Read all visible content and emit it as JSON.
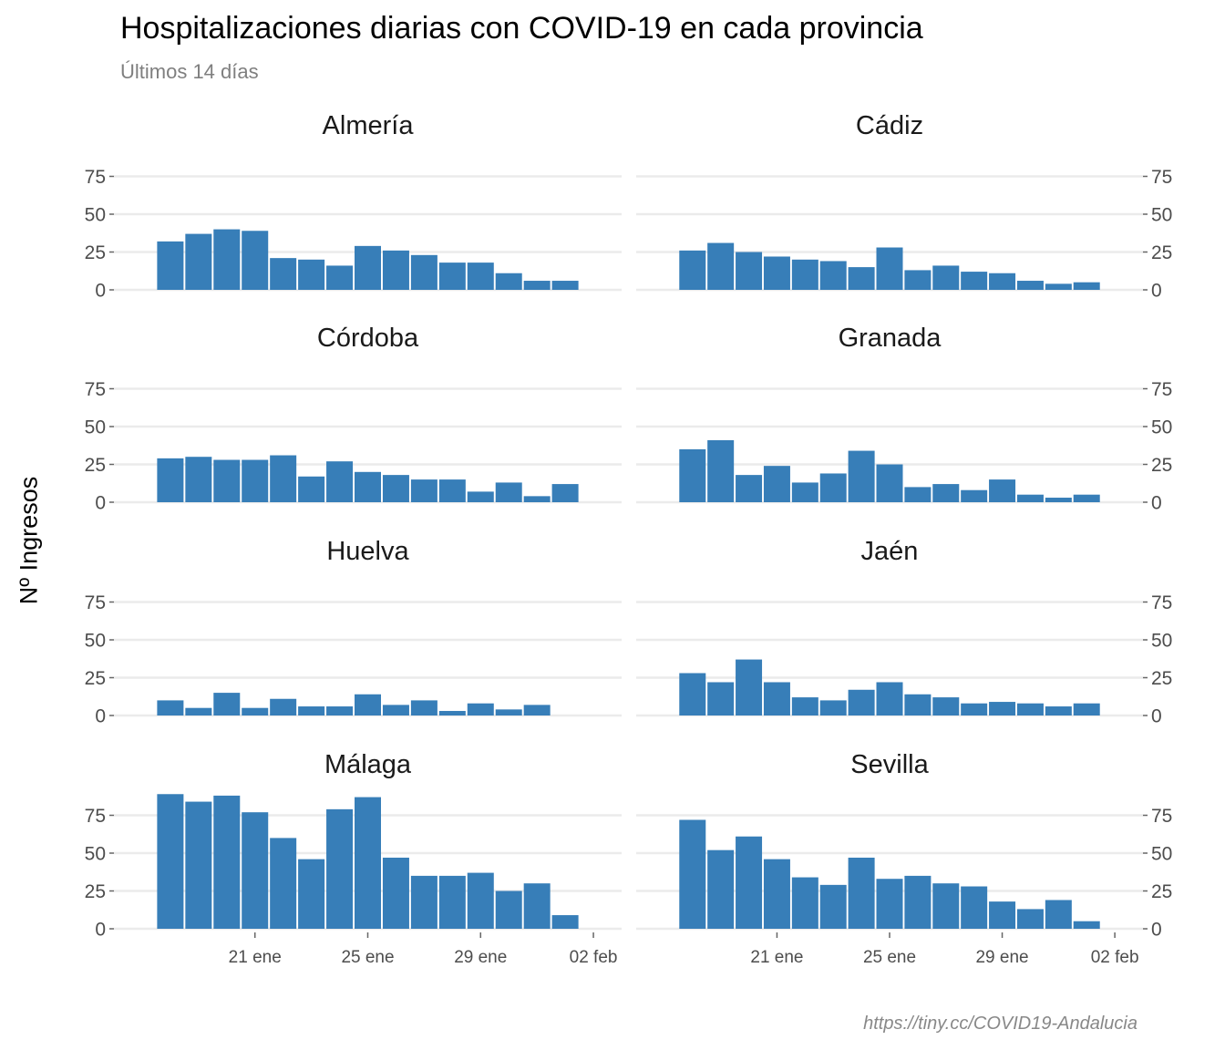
{
  "title": "Hospitalizaciones diarias con COVID-19 en cada provincia",
  "subtitle": "Últimos 14 días",
  "caption": "https://tiny.cc/COVID19-Andalucia",
  "chart_data": {
    "type": "bar",
    "layout": "facet-grid 4x2",
    "ylabel": "Nº Ingresos",
    "ylim": [
      0,
      90
    ],
    "yticks": [
      0,
      25,
      50,
      75
    ],
    "xlim": [
      "2021-01-16",
      "2021-02-03"
    ],
    "xticks": [
      {
        "date": "2021-01-21",
        "label": "21 ene"
      },
      {
        "date": "2021-01-25",
        "label": "25 ene"
      },
      {
        "date": "2021-01-29",
        "label": "29 ene"
      },
      {
        "date": "2021-02-02",
        "label": "02 feb"
      }
    ],
    "grid": true,
    "bar_color": "#377eb8",
    "panels": [
      {
        "name": "Almería",
        "start": "2021-01-18",
        "values": [
          32,
          37,
          40,
          39,
          21,
          20,
          16,
          29,
          26,
          23,
          18,
          18,
          11,
          6,
          6
        ]
      },
      {
        "name": "Cádiz",
        "start": "2021-01-18",
        "values": [
          26,
          31,
          25,
          22,
          20,
          19,
          15,
          28,
          13,
          16,
          12,
          11,
          6,
          4,
          5
        ]
      },
      {
        "name": "Córdoba",
        "start": "2021-01-18",
        "values": [
          29,
          30,
          28,
          28,
          31,
          17,
          27,
          20,
          18,
          15,
          15,
          7,
          13,
          4,
          12
        ]
      },
      {
        "name": "Granada",
        "start": "2021-01-18",
        "values": [
          35,
          41,
          18,
          24,
          13,
          19,
          34,
          25,
          10,
          12,
          8,
          15,
          5,
          3,
          5
        ]
      },
      {
        "name": "Huelva",
        "start": "2021-01-18",
        "values": [
          10,
          5,
          15,
          5,
          11,
          6,
          6,
          14,
          7,
          10,
          3,
          8,
          4,
          7
        ]
      },
      {
        "name": "Jaén",
        "start": "2021-01-18",
        "values": [
          28,
          22,
          37,
          22,
          12,
          10,
          17,
          22,
          14,
          12,
          8,
          9,
          8,
          6,
          8
        ]
      },
      {
        "name": "Málaga",
        "start": "2021-01-18",
        "values": [
          89,
          84,
          88,
          77,
          60,
          46,
          79,
          87,
          47,
          35,
          35,
          37,
          25,
          30,
          9
        ]
      },
      {
        "name": "Sevilla",
        "start": "2021-01-18",
        "values": [
          72,
          52,
          61,
          46,
          34,
          29,
          47,
          33,
          35,
          30,
          28,
          18,
          13,
          19,
          5
        ]
      }
    ]
  }
}
